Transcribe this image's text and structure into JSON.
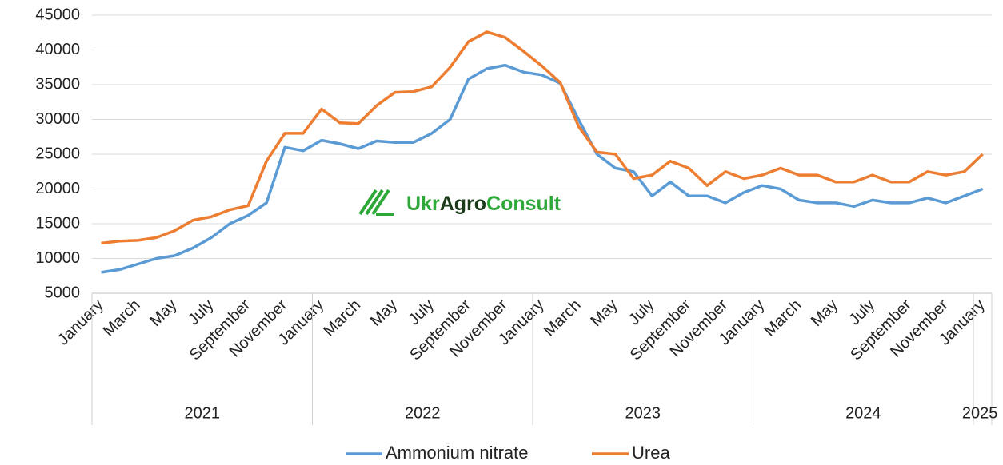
{
  "chart_data": {
    "type": "line",
    "categories": [
      "January",
      null,
      "March",
      null,
      "May",
      null,
      "July",
      null,
      "September",
      null,
      "November",
      null,
      "January",
      null,
      "March",
      null,
      "May",
      null,
      "July",
      null,
      "September",
      null,
      "November",
      null,
      "January",
      null,
      "March",
      null,
      "May",
      null,
      "July",
      null,
      "September",
      null,
      "November",
      null,
      "January",
      null,
      "March",
      null,
      "May",
      null,
      "July",
      null,
      "September",
      null,
      "November",
      null,
      "January"
    ],
    "years": [
      "2021",
      "2022",
      "2023",
      "2024",
      "2025"
    ],
    "series": [
      {
        "name": "Ammonium nitrate",
        "color": "#5b9bd5",
        "values": [
          8000,
          8400,
          9200,
          10000,
          10400,
          11500,
          13000,
          15000,
          16200,
          18000,
          26000,
          25500,
          27000,
          26500,
          25800,
          26900,
          26700,
          26700,
          28000,
          30000,
          35800,
          37300,
          37800,
          36800,
          36400,
          35200,
          30000,
          25000,
          23000,
          22500,
          19000,
          21000,
          19000,
          19000,
          18000,
          19500,
          20500,
          20000,
          18400,
          18000,
          18000,
          17500,
          18400,
          18000,
          18000,
          18700,
          18000,
          19000,
          20000
        ]
      },
      {
        "name": "Urea",
        "color": "#ed7d31",
        "values": [
          12200,
          12500,
          12600,
          13000,
          14000,
          15500,
          16000,
          17000,
          17600,
          24000,
          28000,
          28000,
          31500,
          29500,
          29400,
          32000,
          33900,
          34000,
          34700,
          37500,
          41200,
          42600,
          41800,
          39800,
          37700,
          35300,
          29000,
          25300,
          25000,
          21500,
          22000,
          24000,
          23000,
          20500,
          22500,
          21500,
          22000,
          23000,
          22000,
          22000,
          21000,
          21000,
          22000,
          21000,
          21000,
          22500,
          22000,
          22500,
          25000
        ]
      }
    ],
    "ylim": [
      5000,
      45000
    ],
    "yticks": [
      5000,
      10000,
      15000,
      20000,
      25000,
      30000,
      35000,
      40000,
      45000
    ],
    "grid": true,
    "legend": "bottom",
    "watermark": [
      "Ukr",
      "Agro",
      "Consult"
    ]
  }
}
